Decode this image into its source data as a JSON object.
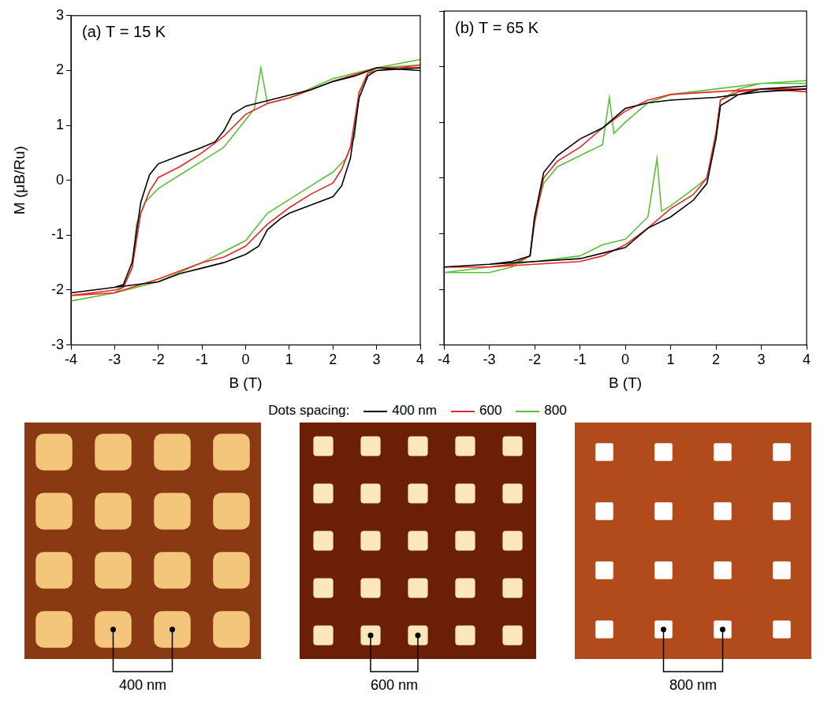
{
  "chart_data": [
    {
      "type": "line",
      "title": "(a) T = 15 K",
      "xlabel": "B (T)",
      "ylabel": "M (μB/Ru)",
      "xlim": [
        -4,
        4
      ],
      "xticks": [
        -4,
        -3,
        -2,
        -1,
        0,
        1,
        2,
        3,
        4
      ],
      "ylim": [
        -3,
        3
      ],
      "yticks": [
        -3,
        -2,
        -1,
        0,
        1,
        2,
        3
      ],
      "grid": false,
      "legend": "bottom",
      "legend_title": "Dots spacing:",
      "series": [
        {
          "name": "400 nm",
          "color": "#000000",
          "x": [
            4,
            3,
            2.5,
            2,
            1.5,
            1,
            0.5,
            0,
            -0.3,
            -0.5,
            -0.7,
            -1,
            -1.5,
            -2,
            -2.2,
            -2.4,
            -2.6,
            -2.8,
            -3,
            -3.5,
            -4,
            -3,
            -2,
            -1.5,
            -1,
            -0.5,
            0,
            0.3,
            0.5,
            0.8,
            1,
            1.5,
            2,
            2.2,
            2.4,
            2.6,
            2.8,
            3,
            4
          ],
          "values": [
            2.0,
            2.05,
            1.9,
            1.8,
            1.65,
            1.55,
            1.45,
            1.35,
            1.2,
            0.9,
            0.7,
            0.6,
            0.45,
            0.3,
            0.1,
            -0.4,
            -1.5,
            -1.9,
            -1.95,
            -2.0,
            -2.05,
            -1.95,
            -1.85,
            -1.7,
            -1.6,
            -1.5,
            -1.35,
            -1.2,
            -0.9,
            -0.7,
            -0.6,
            -0.45,
            -0.3,
            -0.1,
            0.4,
            1.5,
            1.9,
            2.0,
            2.05
          ]
        },
        {
          "name": "600",
          "color": "#e8262a",
          "x": [
            4,
            3,
            2,
            1,
            0.5,
            0,
            -0.5,
            -1,
            -1.5,
            -2,
            -2.2,
            -2.4,
            -2.6,
            -2.8,
            -3,
            -4,
            -3,
            -2,
            -1,
            -0.5,
            0,
            0.5,
            1,
            1.5,
            2,
            2.2,
            2.4,
            2.6,
            2.8,
            3,
            4
          ],
          "values": [
            2.05,
            2.05,
            1.8,
            1.5,
            1.4,
            1.2,
            0.8,
            0.5,
            0.25,
            0.05,
            -0.2,
            -0.6,
            -1.6,
            -1.95,
            -2.0,
            -2.1,
            -2.05,
            -1.8,
            -1.5,
            -1.4,
            -1.2,
            -0.8,
            -0.5,
            -0.25,
            -0.05,
            0.2,
            0.6,
            1.6,
            1.95,
            2.0,
            2.1
          ]
        },
        {
          "name": "800",
          "color": "#5cbf3a",
          "x": [
            4,
            3,
            2,
            1,
            0.5,
            0.35,
            0.2,
            0,
            -0.5,
            -1,
            -1.5,
            -2,
            -2.3,
            -2.5,
            -2.6,
            -2.8,
            -3,
            -4,
            -3,
            -2,
            -1,
            -0.5,
            0,
            0.5,
            1,
            1.5,
            2,
            2.3,
            2.5,
            2.6,
            2.8,
            3,
            4
          ],
          "values": [
            2.1,
            2.05,
            1.85,
            1.5,
            1.4,
            2.05,
            1.3,
            1.1,
            0.6,
            0.35,
            0.1,
            -0.15,
            -0.4,
            -0.8,
            -1.6,
            -1.95,
            -2.05,
            -2.2,
            -2.05,
            -1.85,
            -1.5,
            -1.3,
            -1.1,
            -0.6,
            -0.35,
            -0.1,
            0.15,
            0.4,
            0.8,
            1.6,
            1.95,
            2.05,
            2.2
          ]
        }
      ]
    },
    {
      "type": "line",
      "title": "(b) T = 65 K",
      "xlabel": "B (T)",
      "xlim": [
        -4,
        4
      ],
      "xticks": [
        -4,
        -3,
        -2,
        -1,
        0,
        1,
        2,
        3,
        4
      ],
      "ylim": [
        -3,
        3
      ],
      "yticks": [
        -3,
        -2,
        -1,
        0,
        1,
        2,
        3
      ],
      "grid": false,
      "tick_labels": "x",
      "series": [
        {
          "name": "400 nm",
          "color": "#000000",
          "x": [
            4,
            3,
            2,
            1,
            0.5,
            0,
            -0.5,
            -1,
            -1.5,
            -1.8,
            -2,
            -2.1,
            -2.5,
            -3,
            -4,
            -3,
            -2,
            -1,
            -0.5,
            0,
            0.5,
            1,
            1.5,
            1.8,
            2,
            2.1,
            2.5,
            3,
            4
          ],
          "values": [
            1.6,
            1.55,
            1.45,
            1.4,
            1.35,
            1.25,
            0.9,
            0.7,
            0.4,
            0.1,
            -0.7,
            -1.4,
            -1.5,
            -1.55,
            -1.6,
            -1.55,
            -1.5,
            -1.45,
            -1.35,
            -1.25,
            -0.9,
            -0.7,
            -0.4,
            -0.1,
            0.7,
            1.3,
            1.5,
            1.6,
            1.65
          ]
        },
        {
          "name": "600",
          "color": "#e8262a",
          "x": [
            4,
            3,
            2,
            1,
            0.5,
            0,
            -0.5,
            -1,
            -1.5,
            -1.8,
            -2,
            -2.1,
            -2.5,
            -3,
            -4,
            -3,
            -2,
            -1,
            -0.5,
            0,
            0.5,
            1,
            1.5,
            1.8,
            2,
            2.1,
            2.5,
            3,
            4
          ],
          "values": [
            1.55,
            1.6,
            1.55,
            1.5,
            1.4,
            1.2,
            0.9,
            0.55,
            0.3,
            0.0,
            -0.8,
            -1.4,
            -1.55,
            -1.6,
            -1.6,
            -1.6,
            -1.55,
            -1.5,
            -1.4,
            -1.2,
            -0.9,
            -0.55,
            -0.3,
            0.0,
            0.8,
            1.4,
            1.55,
            1.6,
            1.6
          ]
        },
        {
          "name": "800",
          "color": "#5cbf3a",
          "x": [
            4,
            3,
            2,
            1,
            0.5,
            0,
            -0.25,
            -0.35,
            -0.5,
            -1,
            -1.5,
            -1.8,
            -2,
            -2.1,
            -2.5,
            -3,
            -4,
            -3,
            -2,
            -1,
            -0.5,
            0,
            0.5,
            0.7,
            0.8,
            1,
            1.5,
            1.8,
            2,
            2.1,
            2.5,
            3,
            4
          ],
          "values": [
            1.7,
            1.7,
            1.6,
            1.5,
            1.35,
            1.0,
            0.8,
            1.45,
            0.6,
            0.4,
            0.2,
            -0.1,
            -0.7,
            -1.4,
            -1.6,
            -1.7,
            -1.7,
            -1.6,
            -1.5,
            -1.4,
            -1.2,
            -1.1,
            -0.7,
            0.35,
            -0.6,
            -0.5,
            -0.2,
            0.0,
            0.8,
            1.4,
            1.6,
            1.7,
            1.75
          ]
        }
      ]
    }
  ],
  "afm_images": [
    {
      "label": "400 nm"
    },
    {
      "label": "600 nm"
    },
    {
      "label": "800 nm"
    }
  ]
}
